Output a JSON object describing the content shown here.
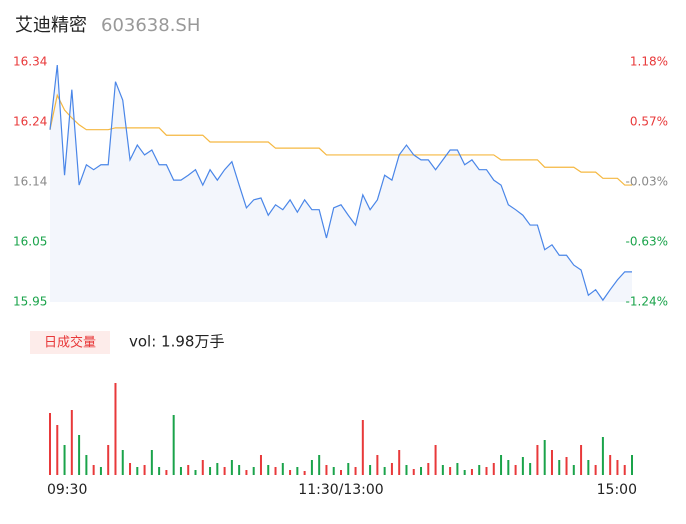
{
  "chart_data": {
    "type": "line",
    "title": "艾迪精密",
    "subtitle": "603638.SH",
    "ylim": [
      15.95,
      16.34
    ],
    "yticks": [
      {
        "value": 16.34,
        "label": "16.34"
      },
      {
        "value": 16.2425,
        "label": "16.24"
      },
      {
        "value": 16.145,
        "label": "16.14"
      },
      {
        "value": 16.0475,
        "label": "16.05"
      },
      {
        "value": 15.95,
        "label": "15.95"
      }
    ],
    "y2lim": [
      -1.24,
      1.18
    ],
    "y2ticks": [
      {
        "value": 1.18,
        "label": "1.18%"
      },
      {
        "value": 0.575,
        "label": "0.57%"
      },
      {
        "value": -0.03,
        "label": "-0.03%"
      },
      {
        "value": -0.635,
        "label": "-0.63%"
      },
      {
        "value": -1.24,
        "label": "-1.24%"
      }
    ],
    "xlim": [
      0,
      80
    ],
    "xticks": [
      {
        "value": 0,
        "label": "09:30"
      },
      {
        "value": 40,
        "label": "11:30/13:00"
      },
      {
        "value": 80,
        "label": "15:00"
      }
    ],
    "up_color": "#e8393a",
    "down_color": "#1aa34a",
    "flat_color": "#8a8a8a",
    "series": [
      {
        "color": "#4a86e8",
        "values": [
          16.23,
          16.335,
          16.156,
          16.295,
          16.14,
          16.173,
          16.165,
          16.173,
          16.173,
          16.308,
          16.278,
          16.181,
          16.205,
          16.189,
          16.197,
          16.173,
          16.173,
          16.148,
          16.148,
          16.156,
          16.165,
          16.14,
          16.165,
          16.148,
          16.165,
          16.178,
          16.14,
          16.103,
          16.116,
          16.119,
          16.091,
          16.108,
          16.1,
          16.116,
          16.096,
          16.116,
          16.1,
          16.1,
          16.054,
          16.103,
          16.108,
          16.091,
          16.075,
          16.124,
          16.1,
          16.116,
          16.156,
          16.148,
          16.189,
          16.205,
          16.189,
          16.181,
          16.181,
          16.165,
          16.181,
          16.197,
          16.197,
          16.173,
          16.181,
          16.165,
          16.165,
          16.148,
          16.14,
          16.108,
          16.1,
          16.091,
          16.075,
          16.075,
          16.035,
          16.043,
          16.026,
          16.026,
          16.01,
          16.002,
          15.961,
          15.97,
          15.953,
          15.97,
          15.986,
          15.999,
          15.999
        ]
      },
      {
        "color": "#f5b841",
        "values": [
          16.23,
          16.286,
          16.262,
          16.249,
          16.238,
          16.23,
          16.23,
          16.23,
          16.23,
          16.233,
          16.233,
          16.233,
          16.233,
          16.233,
          16.233,
          16.233,
          16.221,
          16.221,
          16.221,
          16.221,
          16.221,
          16.221,
          16.21,
          16.21,
          16.21,
          16.21,
          16.21,
          16.21,
          16.21,
          16.21,
          16.21,
          16.2,
          16.2,
          16.2,
          16.2,
          16.2,
          16.2,
          16.2,
          16.189,
          16.189,
          16.189,
          16.189,
          16.189,
          16.189,
          16.189,
          16.189,
          16.189,
          16.189,
          16.189,
          16.189,
          16.189,
          16.189,
          16.189,
          16.189,
          16.189,
          16.189,
          16.189,
          16.189,
          16.189,
          16.189,
          16.189,
          16.189,
          16.181,
          16.181,
          16.181,
          16.181,
          16.181,
          16.181,
          16.169,
          16.169,
          16.169,
          16.169,
          16.169,
          16.161,
          16.161,
          16.161,
          16.151,
          16.151,
          16.151,
          16.14,
          16.14
        ]
      }
    ],
    "volume": {
      "button": "日成交量",
      "label": "vol: 1.98万手",
      "ylim": [
        0,
        92
      ],
      "series": [
        {
          "color": "#e8393a",
          "values": [
            62,
            50,
            null,
            65,
            null,
            null,
            10,
            null,
            30,
            92,
            null,
            12,
            null,
            10,
            null,
            null,
            5,
            null,
            null,
            10,
            null,
            15,
            null,
            null,
            8,
            null,
            null,
            5,
            null,
            20,
            null,
            8,
            null,
            5,
            null,
            4,
            null,
            null,
            10,
            null,
            5,
            null,
            8,
            55,
            null,
            20,
            null,
            12,
            25,
            null,
            6,
            null,
            12,
            30,
            null,
            8,
            null,
            null,
            6,
            null,
            8,
            12,
            null,
            null,
            10,
            null,
            null,
            30,
            null,
            25,
            null,
            18,
            null,
            30,
            null,
            10,
            null,
            20,
            15,
            10,
            null
          ]
        },
        {
          "color": "#1aa34a",
          "values": [
            null,
            null,
            30,
            null,
            40,
            20,
            null,
            8,
            null,
            null,
            25,
            null,
            8,
            null,
            25,
            8,
            null,
            60,
            8,
            null,
            5,
            null,
            8,
            12,
            null,
            15,
            10,
            null,
            8,
            null,
            10,
            null,
            12,
            null,
            8,
            null,
            15,
            20,
            null,
            8,
            null,
            12,
            null,
            null,
            10,
            null,
            8,
            null,
            null,
            10,
            null,
            8,
            null,
            null,
            10,
            null,
            12,
            5,
            null,
            10,
            null,
            null,
            20,
            15,
            null,
            18,
            12,
            null,
            35,
            null,
            15,
            null,
            10,
            null,
            15,
            null,
            38,
            null,
            null,
            null,
            20
          ]
        }
      ]
    }
  }
}
